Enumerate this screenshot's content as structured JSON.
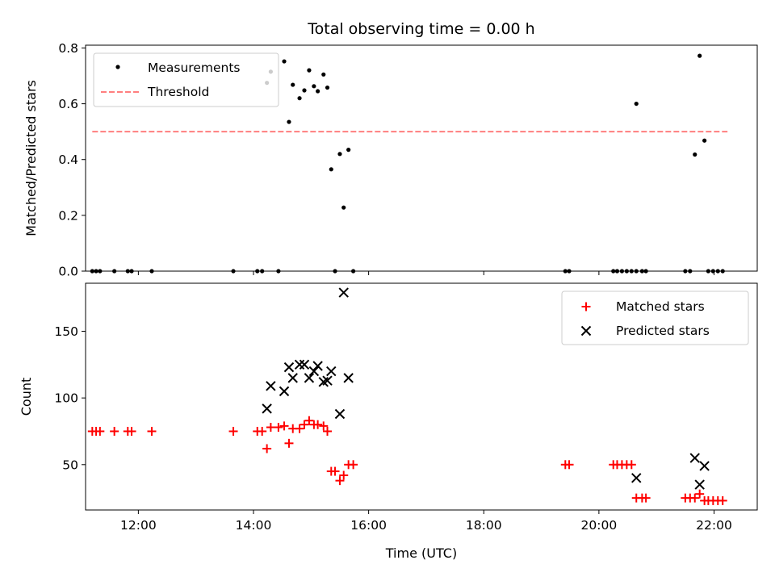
{
  "chart_data": [
    {
      "type": "scatter",
      "title": "Total observing time = 0.00 h",
      "xlabel": "",
      "ylabel": "Matched/Predicted stars",
      "xlim": [
        "11:05",
        "22:45"
      ],
      "ylim": [
        0,
        0.81
      ],
      "x_ticks": [
        "12:00",
        "14:00",
        "16:00",
        "18:00",
        "20:00",
        "22:00"
      ],
      "y_ticks": [
        "0.0",
        "0.2",
        "0.4",
        "0.6",
        "0.8"
      ],
      "legend_position": "upper-left",
      "series": [
        {
          "name": "Measurements",
          "marker": "dot",
          "color": "#000000",
          "points": [
            [
              "11:12",
              0
            ],
            [
              "11:16",
              0
            ],
            [
              "11:20",
              0
            ],
            [
              "11:35",
              0
            ],
            [
              "11:49",
              0
            ],
            [
              "11:53",
              0
            ],
            [
              "12:14",
              0
            ],
            [
              "13:39",
              0
            ],
            [
              "14:04",
              0
            ],
            [
              "14:09",
              0
            ],
            [
              "14:14",
              0.675
            ],
            [
              "14:18",
              0.715
            ],
            [
              "14:26",
              0
            ],
            [
              "14:32",
              0.752
            ],
            [
              "14:37",
              0.535
            ],
            [
              "14:41",
              0.668
            ],
            [
              "14:48",
              0.62
            ],
            [
              "14:53",
              0.648
            ],
            [
              "14:58",
              0.72
            ],
            [
              "15:03",
              0.663
            ],
            [
              "15:07",
              0.645
            ],
            [
              "15:13",
              0.705
            ],
            [
              "15:17",
              0.658
            ],
            [
              "15:21",
              0.365
            ],
            [
              "15:25",
              0
            ],
            [
              "15:30",
              0.42
            ],
            [
              "15:34",
              0.228
            ],
            [
              "15:39",
              0.435
            ],
            [
              "15:44",
              0
            ],
            [
              "19:25",
              0
            ],
            [
              "19:29",
              0
            ],
            [
              "20:15",
              0
            ],
            [
              "20:19",
              0
            ],
            [
              "20:24",
              0
            ],
            [
              "20:29",
              0
            ],
            [
              "20:34",
              0
            ],
            [
              "20:39",
              0
            ],
            [
              "20:39",
              0.6
            ],
            [
              "20:45",
              0
            ],
            [
              "20:49",
              0
            ],
            [
              "21:30",
              0
            ],
            [
              "21:35",
              0
            ],
            [
              "21:40",
              0.418
            ],
            [
              "21:45",
              0.772
            ],
            [
              "21:50",
              0.468
            ],
            [
              "21:54",
              0
            ],
            [
              "21:59",
              0
            ],
            [
              "22:04",
              0
            ],
            [
              "22:09",
              0
            ]
          ]
        },
        {
          "name": "Threshold",
          "line": "dashed",
          "color": "#ff7f7f",
          "points": [
            [
              "11:12",
              0.5
            ],
            [
              "22:14",
              0.5
            ]
          ]
        }
      ]
    },
    {
      "type": "scatter",
      "title": "",
      "xlabel": "Time (UTC)",
      "ylabel": "Count",
      "xlim": [
        "11:05",
        "22:45"
      ],
      "ylim": [
        16,
        186
      ],
      "x_ticks": [
        "12:00",
        "14:00",
        "16:00",
        "18:00",
        "20:00",
        "22:00"
      ],
      "y_ticks": [
        "50",
        "100",
        "150"
      ],
      "legend_position": "upper-right",
      "series": [
        {
          "name": "Matched stars",
          "marker": "plus",
          "color": "#ff0000",
          "points": [
            [
              "11:12",
              75
            ],
            [
              "11:16",
              75
            ],
            [
              "11:20",
              75
            ],
            [
              "11:35",
              75
            ],
            [
              "11:49",
              75
            ],
            [
              "11:53",
              75
            ],
            [
              "12:14",
              75
            ],
            [
              "13:39",
              75
            ],
            [
              "14:04",
              75
            ],
            [
              "14:09",
              75
            ],
            [
              "14:14",
              62
            ],
            [
              "14:18",
              78
            ],
            [
              "14:26",
              78
            ],
            [
              "14:32",
              79
            ],
            [
              "14:37",
              66
            ],
            [
              "14:41",
              77
            ],
            [
              "14:48",
              77
            ],
            [
              "14:53",
              80
            ],
            [
              "14:58",
              83
            ],
            [
              "15:03",
              80
            ],
            [
              "15:07",
              80
            ],
            [
              "15:13",
              79
            ],
            [
              "15:17",
              75
            ],
            [
              "15:21",
              45
            ],
            [
              "15:25",
              45
            ],
            [
              "15:30",
              38
            ],
            [
              "15:34",
              42
            ],
            [
              "15:39",
              50
            ],
            [
              "15:44",
              50
            ],
            [
              "19:25",
              50
            ],
            [
              "19:29",
              50
            ],
            [
              "20:15",
              50
            ],
            [
              "20:19",
              50
            ],
            [
              "20:24",
              50
            ],
            [
              "20:29",
              50
            ],
            [
              "20:34",
              50
            ],
            [
              "20:39",
              25
            ],
            [
              "20:45",
              25
            ],
            [
              "20:49",
              25
            ],
            [
              "21:30",
              25
            ],
            [
              "21:35",
              25
            ],
            [
              "21:40",
              25
            ],
            [
              "21:45",
              28
            ],
            [
              "21:50",
              23
            ],
            [
              "21:54",
              23
            ],
            [
              "21:59",
              23
            ],
            [
              "22:04",
              23
            ],
            [
              "22:09",
              23
            ]
          ]
        },
        {
          "name": "Predicted stars",
          "marker": "x",
          "color": "#000000",
          "points": [
            [
              "14:14",
              92
            ],
            [
              "14:18",
              109
            ],
            [
              "14:32",
              105
            ],
            [
              "14:37",
              123
            ],
            [
              "14:41",
              115
            ],
            [
              "14:48",
              125
            ],
            [
              "14:53",
              125
            ],
            [
              "14:58",
              115
            ],
            [
              "15:03",
              120
            ],
            [
              "15:07",
              124
            ],
            [
              "15:13",
              112
            ],
            [
              "15:17",
              113
            ],
            [
              "15:21",
              120
            ],
            [
              "15:30",
              88
            ],
            [
              "15:34",
              179
            ],
            [
              "15:39",
              115
            ],
            [
              "20:39",
              40
            ],
            [
              "21:40",
              55
            ],
            [
              "21:45",
              35
            ],
            [
              "21:50",
              49
            ]
          ]
        }
      ]
    }
  ]
}
